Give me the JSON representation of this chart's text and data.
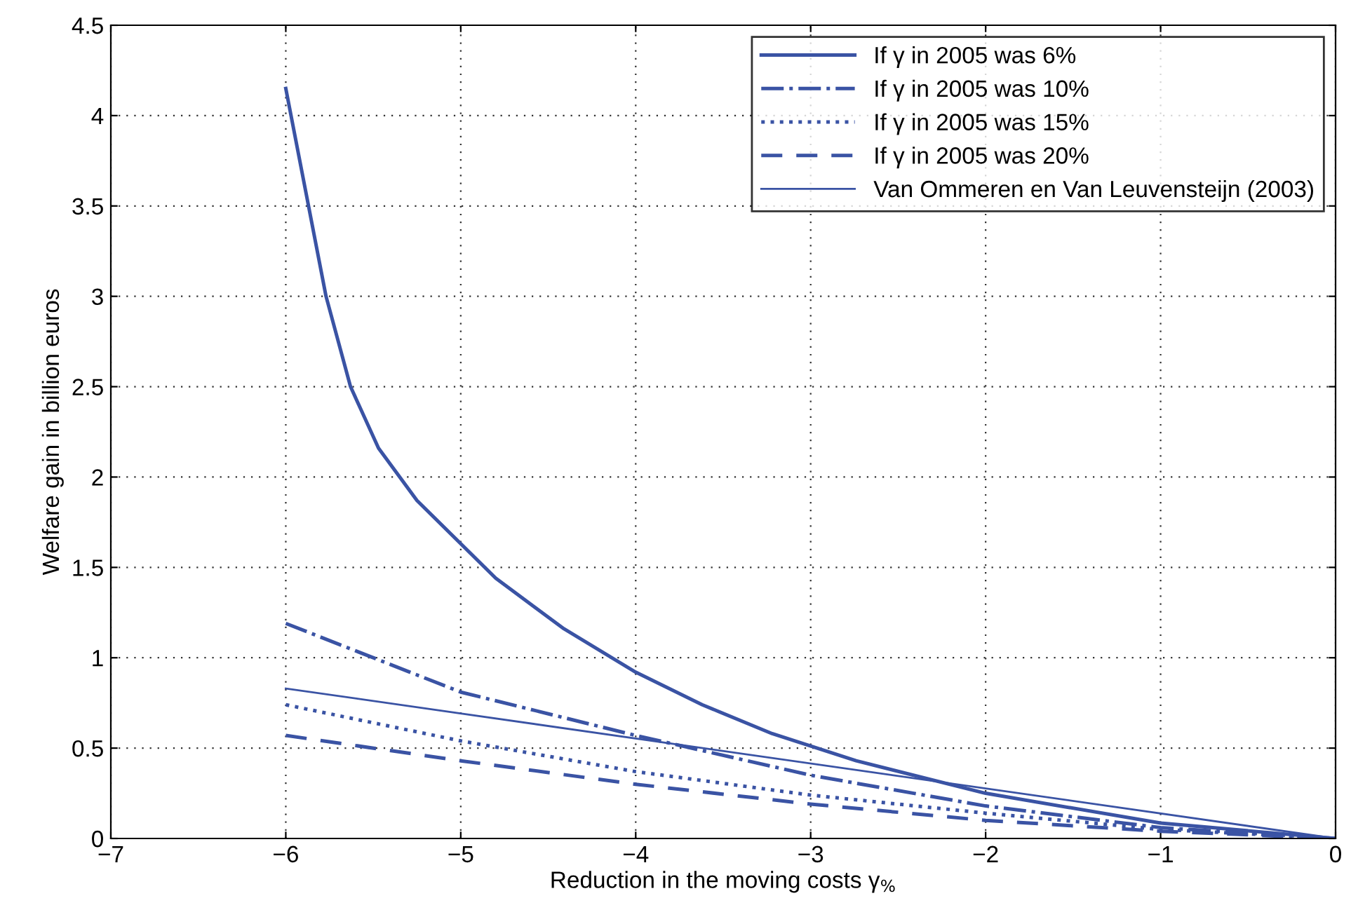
{
  "chart_data": {
    "type": "line",
    "xlabel": "Reduction in the moving costs γ$_{%}$",
    "ylabel": "Welfare gain in billion euros",
    "series": [
      {
        "name": "If γ in 2005 was 6%",
        "color": "#3a53a4",
        "line_style": "solid",
        "x": [
          -6,
          -5.77,
          -5.63,
          -5.47,
          -5.25,
          -4.8,
          -4.41,
          -4.0,
          -3.62,
          -3.22,
          -2.74,
          -2.0,
          -1.0,
          0
        ],
        "values": [
          4.15,
          3.0,
          2.5,
          2.16,
          1.87,
          1.44,
          1.16,
          0.92,
          0.74,
          0.58,
          0.43,
          0.25,
          0.085,
          0
        ]
      },
      {
        "name": "If γ in 2005 was 10%",
        "color": "#3a53a4",
        "line_style": "dashdot",
        "x": [
          -6,
          -5,
          -4,
          -3,
          -2,
          -1,
          0
        ],
        "values": [
          1.19,
          0.81,
          0.57,
          0.35,
          0.18,
          0.06,
          0
        ]
      },
      {
        "name": "If γ in 2005 was 15%",
        "color": "#3a53a4",
        "line_style": "dotted",
        "x": [
          -6,
          -5,
          -4,
          -3,
          -2,
          -1,
          0
        ],
        "values": [
          0.74,
          0.54,
          0.37,
          0.24,
          0.14,
          0.05,
          0
        ]
      },
      {
        "name": "If γ in 2005 was 20%",
        "color": "#3a53a4",
        "line_style": "dashed",
        "x": [
          -6,
          -5,
          -4,
          -3,
          -2,
          -1,
          0
        ],
        "values": [
          0.57,
          0.43,
          0.3,
          0.19,
          0.1,
          0.04,
          0
        ]
      },
      {
        "name": "Van Ommeren en Van Leuvensteijn (2003)",
        "color": "#3a53a4",
        "line_style": "solid",
        "x": [
          -6,
          0
        ],
        "values": [
          0.83,
          0
        ]
      }
    ],
    "xlim": [
      -7,
      0
    ],
    "xticks": [
      {
        "value": -7,
        "label": "−7"
      },
      {
        "value": -6,
        "label": "−6"
      },
      {
        "value": -5,
        "label": "−5"
      },
      {
        "value": -4,
        "label": "−4"
      },
      {
        "value": -3,
        "label": "−3"
      },
      {
        "value": -2,
        "label": "−2"
      },
      {
        "value": -1,
        "label": "−1"
      },
      0
    ],
    "ylim": [
      0,
      4.5
    ],
    "yticks": [
      0,
      0.5,
      1,
      1.5,
      2,
      2.5,
      3,
      3.5,
      4,
      4.5
    ],
    "grid": true,
    "legend": "top right"
  }
}
